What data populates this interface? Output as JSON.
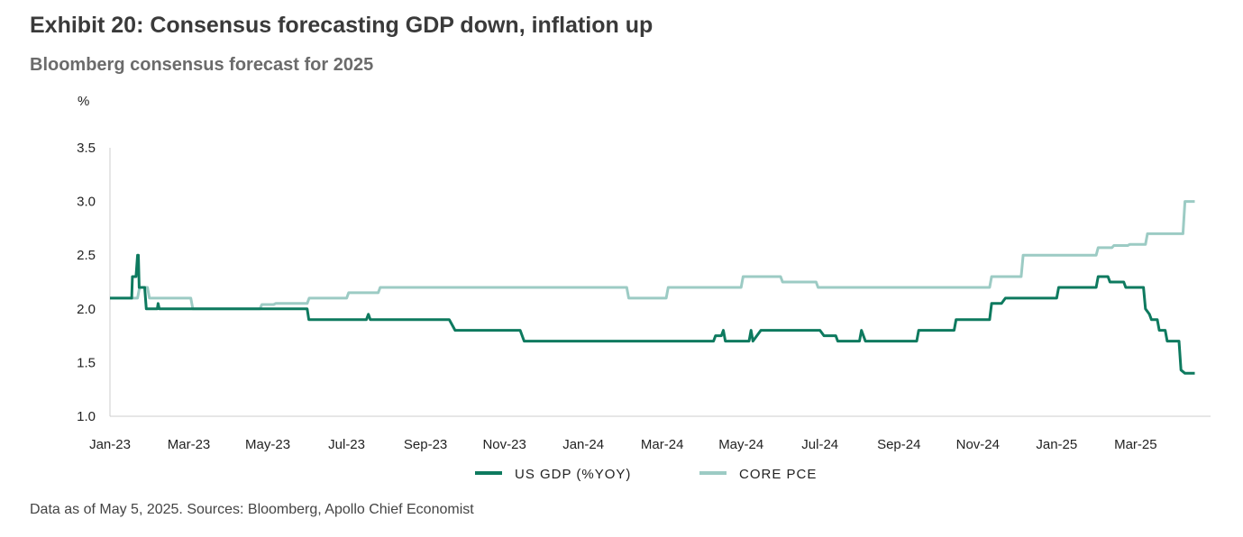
{
  "title": "Exhibit 20: Consensus forecasting GDP down, inflation up",
  "subtitle": "Bloomberg consensus forecast for 2025",
  "footer": "Data as of May 5, 2025. Sources: Bloomberg, Apollo Chief Economist",
  "chart_data": {
    "type": "line",
    "ylabel": "%",
    "ylim": [
      1.0,
      3.5
    ],
    "yticks": [
      "1.0",
      "1.5",
      "2.0",
      "2.5",
      "3.0",
      "3.5"
    ],
    "xlim": [
      0,
      27.9
    ],
    "xticks": [
      {
        "label": "Jan-23",
        "t": 0
      },
      {
        "label": "Mar-23",
        "t": 2
      },
      {
        "label": "May-23",
        "t": 4
      },
      {
        "label": "Jul-23",
        "t": 6
      },
      {
        "label": "Sep-23",
        "t": 8
      },
      {
        "label": "Nov-23",
        "t": 10
      },
      {
        "label": "Jan-24",
        "t": 12
      },
      {
        "label": "Mar-24",
        "t": 14
      },
      {
        "label": "May-24",
        "t": 16
      },
      {
        "label": "Jul-24",
        "t": 18
      },
      {
        "label": "Sep-24",
        "t": 20
      },
      {
        "label": "Nov-24",
        "t": 22
      },
      {
        "label": "Jan-25",
        "t": 24
      },
      {
        "label": "Mar-25",
        "t": 26
      }
    ],
    "legend": [
      "US GDP (%YOY)",
      "CORE PCE"
    ],
    "colors": {
      "gdp": "#0e7a5f",
      "pce": "#9ccbc4",
      "axis": "#cccccc"
    },
    "series": [
      {
        "name": "US GDP (%YOY)",
        "color": "#0e7a5f",
        "points": [
          [
            0.0,
            2.1
          ],
          [
            0.55,
            2.1
          ],
          [
            0.57,
            2.3
          ],
          [
            0.66,
            2.3
          ],
          [
            0.7,
            2.5
          ],
          [
            0.72,
            2.5
          ],
          [
            0.74,
            2.2
          ],
          [
            0.88,
            2.2
          ],
          [
            0.92,
            2.0
          ],
          [
            1.2,
            2.0
          ],
          [
            1.22,
            2.05
          ],
          [
            1.25,
            2.0
          ],
          [
            2.15,
            2.0
          ],
          [
            5.0,
            2.0
          ],
          [
            5.04,
            1.9
          ],
          [
            6.5,
            1.9
          ],
          [
            6.55,
            1.95
          ],
          [
            6.6,
            1.9
          ],
          [
            8.6,
            1.9
          ],
          [
            8.75,
            1.8
          ],
          [
            10.4,
            1.8
          ],
          [
            10.5,
            1.7
          ],
          [
            15.3,
            1.7
          ],
          [
            15.35,
            1.75
          ],
          [
            15.5,
            1.75
          ],
          [
            15.55,
            1.8
          ],
          [
            15.6,
            1.7
          ],
          [
            16.2,
            1.7
          ],
          [
            16.25,
            1.8
          ],
          [
            16.3,
            1.7
          ],
          [
            16.4,
            1.75
          ],
          [
            16.5,
            1.8
          ],
          [
            18.0,
            1.8
          ],
          [
            18.1,
            1.75
          ],
          [
            18.4,
            1.75
          ],
          [
            18.45,
            1.7
          ],
          [
            19.0,
            1.7
          ],
          [
            19.05,
            1.8
          ],
          [
            19.15,
            1.7
          ],
          [
            20.45,
            1.7
          ],
          [
            20.5,
            1.8
          ],
          [
            21.4,
            1.8
          ],
          [
            21.45,
            1.9
          ],
          [
            22.3,
            1.9
          ],
          [
            22.35,
            2.05
          ],
          [
            22.6,
            2.05
          ],
          [
            22.7,
            2.1
          ],
          [
            24.0,
            2.1
          ],
          [
            24.05,
            2.2
          ],
          [
            25.0,
            2.2
          ],
          [
            25.05,
            2.3
          ],
          [
            25.3,
            2.3
          ],
          [
            25.35,
            2.25
          ],
          [
            25.7,
            2.25
          ],
          [
            25.75,
            2.2
          ],
          [
            26.2,
            2.2
          ],
          [
            26.25,
            2.0
          ],
          [
            26.35,
            1.95
          ],
          [
            26.4,
            1.9
          ],
          [
            26.55,
            1.9
          ],
          [
            26.6,
            1.8
          ],
          [
            26.75,
            1.8
          ],
          [
            26.8,
            1.7
          ],
          [
            27.1,
            1.7
          ],
          [
            27.15,
            1.43
          ],
          [
            27.25,
            1.4
          ],
          [
            27.5,
            1.4
          ]
        ]
      },
      {
        "name": "CORE PCE",
        "color": "#9ccbc4",
        "points": [
          [
            0.0,
            2.1
          ],
          [
            0.7,
            2.1
          ],
          [
            0.75,
            2.2
          ],
          [
            0.95,
            2.2
          ],
          [
            1.0,
            2.1
          ],
          [
            2.05,
            2.1
          ],
          [
            2.1,
            2.0
          ],
          [
            3.8,
            2.0
          ],
          [
            3.85,
            2.04
          ],
          [
            4.15,
            2.04
          ],
          [
            4.2,
            2.05
          ],
          [
            5.0,
            2.05
          ],
          [
            5.05,
            2.1
          ],
          [
            6.0,
            2.1
          ],
          [
            6.05,
            2.15
          ],
          [
            6.8,
            2.15
          ],
          [
            6.85,
            2.2
          ],
          [
            13.1,
            2.2
          ],
          [
            13.15,
            2.1
          ],
          [
            14.1,
            2.1
          ],
          [
            14.15,
            2.2
          ],
          [
            16.0,
            2.2
          ],
          [
            16.05,
            2.3
          ],
          [
            17.0,
            2.3
          ],
          [
            17.05,
            2.25
          ],
          [
            17.9,
            2.25
          ],
          [
            17.95,
            2.2
          ],
          [
            22.3,
            2.2
          ],
          [
            22.35,
            2.3
          ],
          [
            23.1,
            2.3
          ],
          [
            23.15,
            2.5
          ],
          [
            25.0,
            2.5
          ],
          [
            25.05,
            2.57
          ],
          [
            25.4,
            2.57
          ],
          [
            25.45,
            2.59
          ],
          [
            25.8,
            2.59
          ],
          [
            25.85,
            2.6
          ],
          [
            26.25,
            2.6
          ],
          [
            26.3,
            2.7
          ],
          [
            27.2,
            2.7
          ],
          [
            27.25,
            3.0
          ],
          [
            27.5,
            3.0
          ]
        ]
      }
    ]
  }
}
